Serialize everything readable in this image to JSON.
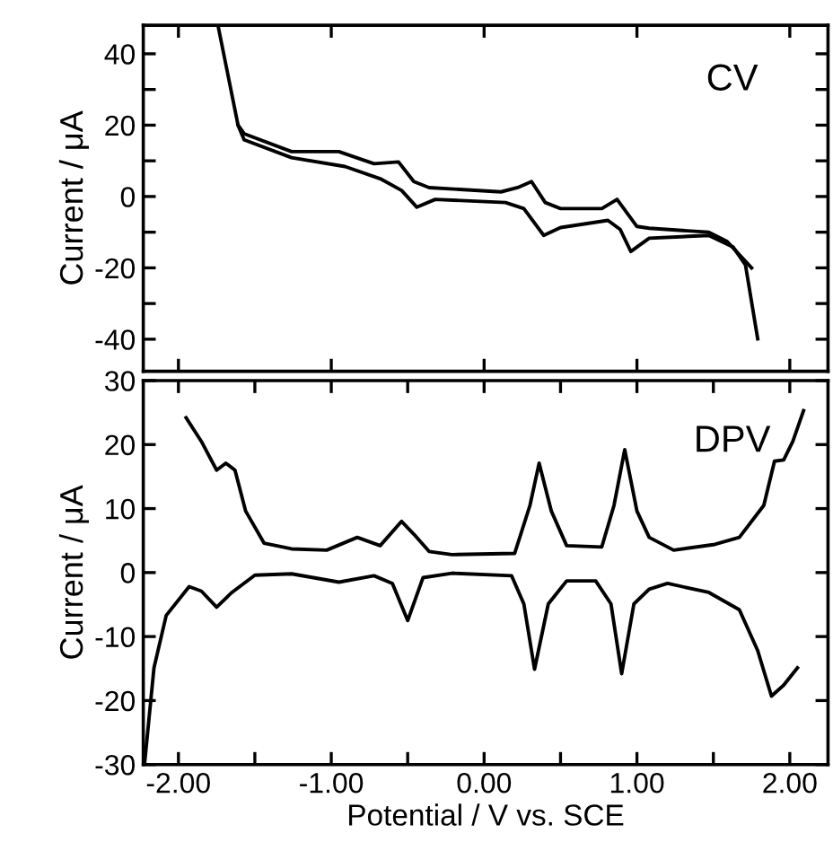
{
  "chart_data": [
    {
      "type": "line",
      "ylabel": "Current / μA",
      "annotations": [
        "CV"
      ],
      "tick_labels": "y",
      "grid": false,
      "legend": false,
      "xlim": [
        -2.23,
        2.25
      ],
      "ylim": [
        -49,
        48
      ],
      "xticks": [
        {
          "value": -2,
          "label": null
        },
        {
          "value": -1,
          "label": null
        },
        {
          "value": 0,
          "label": null
        },
        {
          "value": 1,
          "label": null
        },
        {
          "value": 2,
          "label": null
        }
      ],
      "yticks": [
        {
          "value": -40,
          "label": "-40"
        },
        {
          "value": -30,
          "label": null
        },
        {
          "value": -20,
          "label": "-20"
        },
        {
          "value": -10,
          "label": null
        },
        0,
        {
          "value": 10,
          "label": null
        },
        20,
        {
          "value": 30,
          "label": null
        },
        40
      ],
      "series": [
        {
          "color": "#000000",
          "x": [
            -1.74,
            -1.61,
            -1.57,
            -1.26,
            -0.95,
            -0.87,
            -0.72,
            -0.56,
            -0.46,
            -0.36,
            0.11,
            0.22,
            0.31,
            0.4,
            0.5,
            0.77,
            0.87,
            1.0,
            1.08,
            1.47,
            1.59,
            1.75
          ],
          "values": [
            47.7,
            20,
            17.6,
            12.6,
            12.6,
            11.4,
            9.2,
            9.7,
            4.2,
            2.5,
            1.3,
            2.5,
            4.2,
            -1.7,
            -3.4,
            -3.4,
            -0.8,
            -8.4,
            -8.9,
            -10,
            -12.6,
            -20
          ]
        },
        {
          "color": "#000000",
          "x": [
            -1.61,
            -1.57,
            -1.26,
            -0.91,
            -0.68,
            -0.54,
            -0.44,
            -0.32,
            0.14,
            0.26,
            0.39,
            0.5,
            0.81,
            0.89,
            0.96,
            1.08,
            1.47,
            1.63,
            1.71,
            1.79
          ],
          "values": [
            20,
            15.9,
            10.9,
            8.4,
            5.0,
            1.7,
            -3.0,
            -0.8,
            -1.7,
            -3.4,
            -10.9,
            -8.7,
            -6.7,
            -9.2,
            -15.4,
            -11.7,
            -10.9,
            -14.2,
            -19.2,
            -39.9
          ]
        }
      ]
    },
    {
      "type": "line",
      "xlabel": "Potential / V vs. SCE",
      "ylabel": "Current / μA",
      "annotations": [
        "DPV"
      ],
      "grid": false,
      "legend": false,
      "xlim": [
        -2.23,
        2.25
      ],
      "ylim": [
        -30,
        30
      ],
      "xticks": [
        {
          "value": -2,
          "label": "-2.00"
        },
        {
          "value": -1.5,
          "label": null
        },
        {
          "value": -1,
          "label": "-1.00"
        },
        {
          "value": -0.5,
          "label": null
        },
        {
          "value": 0,
          "label": "0.00"
        },
        {
          "value": 0.5,
          "label": null
        },
        {
          "value": 1,
          "label": "1.00"
        },
        {
          "value": 1.5,
          "label": null
        },
        {
          "value": 2,
          "label": "2.00"
        }
      ],
      "yticks": [
        -30,
        -20,
        -10,
        0,
        10,
        20,
        30
      ],
      "series": [
        {
          "color": "#000000",
          "x": [
            -1.95,
            -1.85,
            -1.75,
            -1.69,
            -1.63,
            -1.56,
            -1.44,
            -1.26,
            -1.03,
            -0.83,
            -0.68,
            -0.54,
            -0.46,
            -0.36,
            -0.21,
            0.2,
            0.3,
            0.36,
            0.44,
            0.54,
            0.77,
            0.85,
            0.92,
            1.0,
            1.08,
            1.24,
            1.51,
            1.67,
            1.83,
            1.9,
            1.96,
            2.02,
            2.09
          ],
          "values": [
            24.2,
            20.5,
            16.0,
            17.1,
            16.0,
            9.6,
            4.6,
            3.7,
            3.5,
            5.5,
            4.2,
            8.0,
            6.0,
            3.3,
            2.8,
            3.0,
            10.5,
            17.1,
            9.6,
            4.2,
            4.0,
            10.5,
            19.2,
            9.6,
            5.5,
            3.5,
            4.4,
            5.5,
            10.5,
            17.4,
            17.6,
            20.5,
            25.3
          ]
        },
        {
          "color": "#000000",
          "x": [
            -2.22,
            -2.16,
            -2.08,
            -1.93,
            -1.85,
            -1.75,
            -1.65,
            -1.5,
            -1.26,
            -0.95,
            -0.72,
            -0.6,
            -0.5,
            -0.4,
            -0.21,
            0.18,
            0.26,
            0.33,
            0.42,
            0.54,
            0.73,
            0.83,
            0.9,
            0.98,
            1.08,
            1.2,
            1.47,
            1.67,
            1.79,
            1.88,
            1.96,
            2.05
          ],
          "values": [
            -29.5,
            -14.9,
            -6.7,
            -2.2,
            -2.9,
            -5.4,
            -3.1,
            -0.4,
            -0.2,
            -1.5,
            -0.5,
            -1.7,
            -7.5,
            -0.8,
            -0.1,
            -0.5,
            -4.9,
            -15.1,
            -4.9,
            -1.3,
            -1.3,
            -4.9,
            -15.8,
            -4.9,
            -2.6,
            -1.7,
            -3.1,
            -5.8,
            -12.2,
            -19.3,
            -17.6,
            -14.9
          ]
        }
      ]
    }
  ]
}
